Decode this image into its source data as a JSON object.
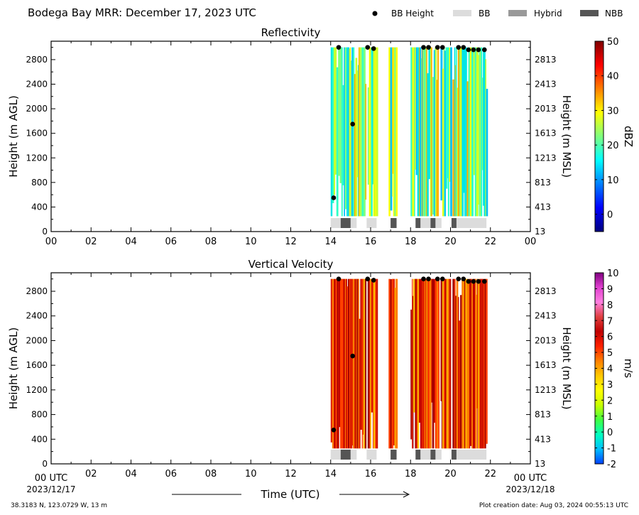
{
  "header": {
    "title": "Bodega Bay MRR:  December 17, 2023 UTC",
    "legend": [
      {
        "label": "BB Height",
        "kind": "dot",
        "color": "#000000"
      },
      {
        "label": "BB",
        "kind": "rect",
        "color": "#dcdcdc"
      },
      {
        "label": "Hybrid",
        "kind": "rect",
        "color": "#999999"
      },
      {
        "label": "NBB",
        "kind": "rect",
        "color": "#555555"
      }
    ]
  },
  "footer": {
    "location": "38.3183 N, 123.0729 W, 13 m",
    "creation": "Plot creation date: Aug 03, 2024 00:55:13 UTC",
    "xlabel": "Time (UTC)",
    "start_tick": "00 UTC",
    "start_date": "2023/12/17",
    "end_tick": "00 UTC",
    "end_date": "2023/12/18"
  },
  "chart_data": [
    {
      "type": "heatmap",
      "title": "Reflectivity",
      "ylabel": "Height (m AGL)",
      "ylabel_right": "Height (m MSL)",
      "xlim": [
        0,
        24
      ],
      "ylim": [
        0,
        3100
      ],
      "x_ticks": [
        "00",
        "02",
        "04",
        "06",
        "08",
        "10",
        "12",
        "14",
        "16",
        "18",
        "20",
        "22",
        "00"
      ],
      "y_ticks": [
        "0",
        "400",
        "800",
        "1200",
        "1600",
        "2000",
        "2400",
        "2800"
      ],
      "y_ticks_right": [
        "13",
        "413",
        "813",
        "1213",
        "1613",
        "2013",
        "2413",
        "2813"
      ],
      "colorbar": {
        "label": "dBZ",
        "min": -5,
        "max": 50,
        "ticks": [
          "0",
          "10",
          "20",
          "30",
          "40",
          "50"
        ],
        "colors": [
          "#00007f",
          "#0000ff",
          "#007fff",
          "#00ffff",
          "#7fff7f",
          "#ffff00",
          "#ff7f00",
          "#ff0000",
          "#7f0000"
        ]
      },
      "data_palette": [
        "#00bfff",
        "#00e5e5",
        "#2fffc7",
        "#7fff7f",
        "#c7ff2f",
        "#ffff00",
        "#ffb000"
      ],
      "data_spans": [
        [
          14.0,
          15.75
        ],
        [
          15.85,
          16.3
        ],
        [
          16.9,
          17.3
        ],
        [
          18.0,
          19.4
        ],
        [
          19.5,
          20.0
        ],
        [
          20.1,
          21.8
        ]
      ],
      "bb_height": [
        [
          14.15,
          550
        ],
        [
          14.4,
          3000
        ],
        [
          15.1,
          1750
        ],
        [
          15.85,
          3000
        ],
        [
          16.15,
          2980
        ],
        [
          18.65,
          3000
        ],
        [
          18.9,
          3000
        ],
        [
          19.35,
          3000
        ],
        [
          19.6,
          3000
        ],
        [
          20.4,
          3000
        ],
        [
          20.65,
          3000
        ],
        [
          20.9,
          2960
        ],
        [
          21.15,
          2960
        ],
        [
          21.4,
          2960
        ],
        [
          21.7,
          2960
        ]
      ],
      "bb_type": [
        {
          "type": "BB",
          "start": 14.0,
          "end": 14.5
        },
        {
          "type": "NBB",
          "start": 14.5,
          "end": 15.0
        },
        {
          "type": "BB",
          "start": 15.0,
          "end": 15.3
        },
        {
          "type": "BB",
          "start": 15.8,
          "end": 16.3
        },
        {
          "type": "NBB",
          "start": 17.0,
          "end": 17.3
        },
        {
          "type": "NBB",
          "start": 18.25,
          "end": 18.5
        },
        {
          "type": "BB",
          "start": 18.5,
          "end": 19.0
        },
        {
          "type": "NBB",
          "start": 19.0,
          "end": 19.25
        },
        {
          "type": "BB",
          "start": 19.25,
          "end": 19.55
        },
        {
          "type": "NBB",
          "start": 20.05,
          "end": 20.3
        },
        {
          "type": "BB",
          "start": 20.3,
          "end": 21.8
        }
      ]
    },
    {
      "type": "heatmap",
      "title": "Vertical Velocity",
      "ylabel": "Height (m AGL)",
      "ylabel_right": "Height (m MSL)",
      "xlim": [
        0,
        24
      ],
      "ylim": [
        0,
        3100
      ],
      "x_ticks": [
        "",
        "02",
        "04",
        "06",
        "08",
        "10",
        "12",
        "14",
        "16",
        "18",
        "20",
        "22",
        ""
      ],
      "y_ticks": [
        "0",
        "400",
        "800",
        "1200",
        "1600",
        "2000",
        "2400",
        "2800"
      ],
      "y_ticks_right": [
        "13",
        "413",
        "813",
        "1213",
        "1613",
        "2013",
        "2413",
        "2813"
      ],
      "colorbar": {
        "label": "m/s",
        "min": -2,
        "max": 10,
        "ticks": [
          "-2",
          "-1",
          "0",
          "1",
          "2",
          "3",
          "4",
          "5",
          "6",
          "7",
          "8",
          "9",
          "10"
        ],
        "colors": [
          "#0040ff",
          "#00bfff",
          "#00ffbf",
          "#40ff40",
          "#c8ff00",
          "#ffff00",
          "#ffc800",
          "#ff8000",
          "#ff2000",
          "#c00000",
          "#e04040",
          "#ff7fe0",
          "#e040d0",
          "#800080"
        ]
      },
      "data_palette": [
        "#cc1000",
        "#e02000",
        "#ff4000",
        "#ff7f00",
        "#c00000",
        "#a00000",
        "#ffc000"
      ],
      "data_spans": [
        [
          14.0,
          15.75
        ],
        [
          15.85,
          16.3
        ],
        [
          16.9,
          17.3
        ],
        [
          18.0,
          19.4
        ],
        [
          19.5,
          20.0
        ],
        [
          20.1,
          21.8
        ]
      ],
      "bb_height": [
        [
          14.15,
          550
        ],
        [
          14.4,
          3000
        ],
        [
          15.1,
          1750
        ],
        [
          15.85,
          3000
        ],
        [
          16.15,
          2980
        ],
        [
          18.65,
          3000
        ],
        [
          18.9,
          3000
        ],
        [
          19.35,
          3000
        ],
        [
          19.6,
          3000
        ],
        [
          20.4,
          3000
        ],
        [
          20.65,
          3000
        ],
        [
          20.9,
          2960
        ],
        [
          21.15,
          2960
        ],
        [
          21.4,
          2960
        ],
        [
          21.7,
          2960
        ]
      ],
      "bb_type": [
        {
          "type": "BB",
          "start": 14.0,
          "end": 14.5
        },
        {
          "type": "NBB",
          "start": 14.5,
          "end": 15.0
        },
        {
          "type": "BB",
          "start": 15.0,
          "end": 15.3
        },
        {
          "type": "BB",
          "start": 15.8,
          "end": 16.3
        },
        {
          "type": "NBB",
          "start": 17.0,
          "end": 17.3
        },
        {
          "type": "NBB",
          "start": 18.25,
          "end": 18.5
        },
        {
          "type": "BB",
          "start": 18.5,
          "end": 19.0
        },
        {
          "type": "NBB",
          "start": 19.0,
          "end": 19.25
        },
        {
          "type": "BB",
          "start": 19.25,
          "end": 19.55
        },
        {
          "type": "NBB",
          "start": 20.05,
          "end": 20.3
        },
        {
          "type": "BB",
          "start": 20.3,
          "end": 21.8
        }
      ]
    }
  ]
}
